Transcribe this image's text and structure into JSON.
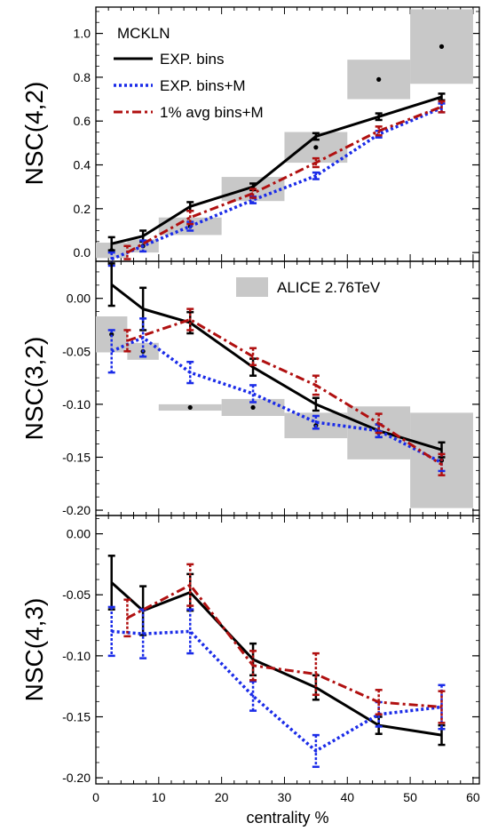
{
  "chart_data": [
    {
      "type": "line",
      "panel": "top",
      "ylabel": "NSC(4,2)",
      "xlabel": "",
      "xlim": [
        0,
        61
      ],
      "ylim": [
        -0.04,
        1.12
      ],
      "yticks": [
        0.0,
        0.2,
        0.4,
        0.6,
        0.8,
        1.0
      ],
      "ytick_labels": [
        "0.0",
        "0.2",
        "0.4",
        "0.6",
        "0.8",
        "1.0"
      ],
      "legend": {
        "title": "MCKLN",
        "placement": "top-left",
        "entries": [
          "EXP. bins",
          "EXP. bins+M",
          "1% avg bins+M"
        ]
      },
      "series": [
        {
          "name": "EXP. bins",
          "color": "#000000",
          "style": "solid",
          "x": [
            2.5,
            7.5,
            15,
            25,
            35,
            45,
            55
          ],
          "y": [
            0.04,
            0.075,
            0.21,
            0.3,
            0.53,
            0.62,
            0.71
          ],
          "err": [
            0.03,
            0.025,
            0.02,
            0.015,
            0.015,
            0.015,
            0.015
          ]
        },
        {
          "name": "EXP. bins+M",
          "color": "#1a2be8",
          "style": "dotted",
          "x": [
            2.5,
            7.5,
            15,
            25,
            35,
            45,
            55
          ],
          "y": [
            -0.03,
            0.03,
            0.12,
            0.24,
            0.35,
            0.54,
            0.66
          ],
          "err": [
            0.03,
            0.025,
            0.02,
            0.015,
            0.015,
            0.015,
            0.02
          ]
        },
        {
          "name": "1% avg bins+M",
          "color": "#b01010",
          "style": "dashdot",
          "x": [
            5,
            15,
            25,
            35,
            45,
            55
          ],
          "y": [
            0.0,
            0.16,
            0.27,
            0.41,
            0.555,
            0.665
          ],
          "err": [
            0.03,
            0.03,
            0.02,
            0.02,
            0.02,
            0.025
          ]
        }
      ],
      "alice": [
        {
          "x": 2.5,
          "y": 0.01,
          "halfw": 2.5,
          "halfh": 0.035
        },
        {
          "x": 7.5,
          "y": 0.03,
          "halfw": 2.5,
          "halfh": 0.03
        },
        {
          "x": 15,
          "y": 0.12,
          "halfw": 5,
          "halfh": 0.04
        },
        {
          "x": 25,
          "y": 0.29,
          "halfw": 5,
          "halfh": 0.055
        },
        {
          "x": 35,
          "y": 0.48,
          "halfw": 5,
          "halfh": 0.07
        },
        {
          "x": 45,
          "y": 0.79,
          "halfw": 5,
          "halfh": 0.09
        },
        {
          "x": 55,
          "y": 0.94,
          "halfw": 5,
          "halfh": 0.17
        }
      ]
    },
    {
      "type": "line",
      "panel": "middle",
      "ylabel": "NSC(3,2)",
      "xlabel": "",
      "xlim": [
        0,
        61
      ],
      "ylim": [
        -0.205,
        0.035
      ],
      "yticks": [
        0.0,
        -0.05,
        -0.1,
        -0.15,
        -0.2
      ],
      "ytick_labels": [
        "0.00",
        "-0.05",
        "-0.10",
        "-0.15",
        "-0.20"
      ],
      "legend": {
        "entries": [
          "ALICE 2.76TeV"
        ],
        "placement": "top-right"
      },
      "series": [
        {
          "name": "EXP. bins",
          "color": "#000000",
          "style": "solid",
          "x": [
            2.5,
            7.5,
            15,
            25,
            35,
            45,
            55
          ],
          "y": [
            0.013,
            -0.01,
            -0.023,
            -0.065,
            -0.1,
            -0.125,
            -0.143
          ],
          "err": [
            0.02,
            0.02,
            0.01,
            0.008,
            0.006,
            0.006,
            0.007
          ]
        },
        {
          "name": "EXP. bins+M",
          "color": "#1a2be8",
          "style": "dotted",
          "x": [
            2.5,
            7.5,
            15,
            25,
            35,
            45,
            55
          ],
          "y": [
            -0.05,
            -0.037,
            -0.07,
            -0.09,
            -0.117,
            -0.125,
            -0.155
          ],
          "err": [
            0.02,
            0.018,
            0.01,
            0.008,
            0.006,
            0.006,
            0.008
          ]
        },
        {
          "name": "1% avg bins+M",
          "color": "#b01010",
          "style": "dashdot",
          "x": [
            5,
            15,
            25,
            35,
            45,
            55
          ],
          "y": [
            -0.04,
            -0.02,
            -0.055,
            -0.082,
            -0.118,
            -0.157
          ],
          "err": [
            0.01,
            0.01,
            0.008,
            0.009,
            0.009,
            0.01
          ]
        }
      ],
      "alice": [
        {
          "x": 2.5,
          "y": -0.034,
          "halfw": 2.5,
          "halfh": 0.017
        },
        {
          "x": 7.5,
          "y": -0.05,
          "halfw": 2.5,
          "halfh": 0.008
        },
        {
          "x": 15,
          "y": -0.103,
          "halfw": 5,
          "halfh": 0.003
        },
        {
          "x": 25,
          "y": -0.103,
          "halfw": 5,
          "halfh": 0.008
        },
        {
          "x": 35,
          "y": -0.12,
          "halfw": 5,
          "halfh": 0.012
        },
        {
          "x": 45,
          "y": -0.127,
          "halfw": 5,
          "halfh": 0.025
        },
        {
          "x": 55,
          "y": -0.153,
          "halfw": 5,
          "halfh": 0.045
        }
      ]
    },
    {
      "type": "line",
      "panel": "bottom",
      "ylabel": "NSC(4,3)",
      "xlabel": "centrality %",
      "xlim": [
        0,
        61
      ],
      "ylim": [
        -0.205,
        0.015
      ],
      "yticks": [
        0.0,
        -0.05,
        -0.1,
        -0.15,
        -0.2
      ],
      "ytick_labels": [
        "0.00",
        "-0.05",
        "-0.10",
        "-0.15",
        "-0.20"
      ],
      "xticks": [
        0,
        10,
        20,
        30,
        40,
        50,
        60
      ],
      "xtick_labels": [
        "0",
        "10",
        "20",
        "30",
        "40",
        "50",
        "60"
      ],
      "series": [
        {
          "name": "EXP. bins",
          "color": "#000000",
          "style": "solid",
          "x": [
            2.5,
            7.5,
            15,
            25,
            35,
            45,
            55
          ],
          "y": [
            -0.04,
            -0.063,
            -0.048,
            -0.103,
            -0.126,
            -0.157,
            -0.165
          ],
          "err": [
            0.022,
            0.02,
            0.015,
            0.013,
            0.01,
            0.007,
            0.008
          ]
        },
        {
          "name": "EXP. bins+M",
          "color": "#1a2be8",
          "style": "dotted",
          "x": [
            2.5,
            7.5,
            15,
            25,
            35,
            45,
            55
          ],
          "y": [
            -0.08,
            -0.082,
            -0.08,
            -0.133,
            -0.178,
            -0.148,
            -0.142
          ],
          "err": [
            0.02,
            0.02,
            0.018,
            0.012,
            0.013,
            0.01,
            0.018
          ]
        },
        {
          "name": "1% avg bins+M",
          "color": "#b01010",
          "style": "dashdot",
          "x": [
            5,
            15,
            25,
            35,
            45,
            55
          ],
          "y": [
            -0.069,
            -0.042,
            -0.108,
            -0.115,
            -0.138,
            -0.142
          ],
          "err": [
            0.015,
            0.017,
            0.012,
            0.017,
            0.01,
            0.013
          ]
        }
      ]
    }
  ]
}
